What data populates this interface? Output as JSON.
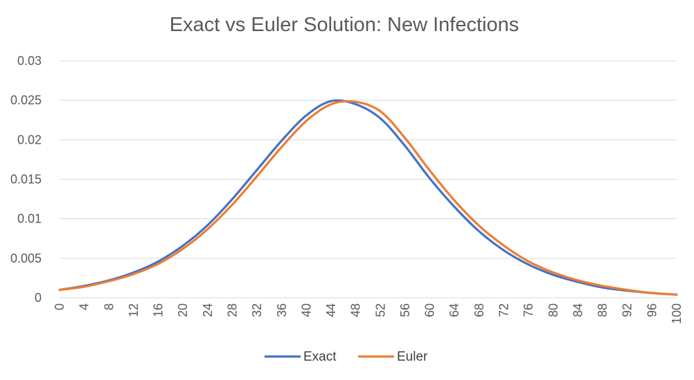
{
  "chart_data": {
    "type": "line",
    "title": "Exact vs Euler Solution: New Infections",
    "xlabel": "",
    "ylabel": "",
    "xlim": [
      0,
      100
    ],
    "ylim": [
      0,
      0.03
    ],
    "grid": true,
    "legend_position": "bottom",
    "y_ticks": [
      "0",
      "0.005",
      "0.01",
      "0.015",
      "0.02",
      "0.025",
      "0.03"
    ],
    "x_ticks": [
      "0",
      "4",
      "8",
      "12",
      "16",
      "20",
      "24",
      "28",
      "32",
      "36",
      "40",
      "44",
      "48",
      "52",
      "56",
      "60",
      "64",
      "68",
      "72",
      "76",
      "80",
      "84",
      "88",
      "92",
      "96",
      "100"
    ],
    "x": [
      0,
      4,
      8,
      12,
      16,
      20,
      24,
      28,
      32,
      36,
      40,
      44,
      48,
      52,
      56,
      60,
      64,
      68,
      72,
      76,
      80,
      84,
      88,
      92,
      96,
      100
    ],
    "series": [
      {
        "name": "Exact",
        "color": "#4472C4",
        "values": [
          0.001,
          0.0015,
          0.0022,
          0.0032,
          0.0046,
          0.0066,
          0.0092,
          0.0125,
          0.0162,
          0.0199,
          0.0231,
          0.0249,
          0.0245,
          0.0227,
          0.0192,
          0.0151,
          0.0115,
          0.0084,
          0.006,
          0.0042,
          0.0029,
          0.002,
          0.0013,
          0.0009,
          0.0006,
          0.0004
        ]
      },
      {
        "name": "Euler",
        "color": "#ED7D31",
        "values": [
          0.001,
          0.0014,
          0.0021,
          0.003,
          0.0043,
          0.0062,
          0.0087,
          0.0118,
          0.0154,
          0.0191,
          0.0224,
          0.0245,
          0.0248,
          0.0236,
          0.0202,
          0.0161,
          0.0123,
          0.0091,
          0.0066,
          0.0046,
          0.0032,
          0.0022,
          0.0015,
          0.001,
          0.0006,
          0.0004
        ]
      }
    ]
  }
}
